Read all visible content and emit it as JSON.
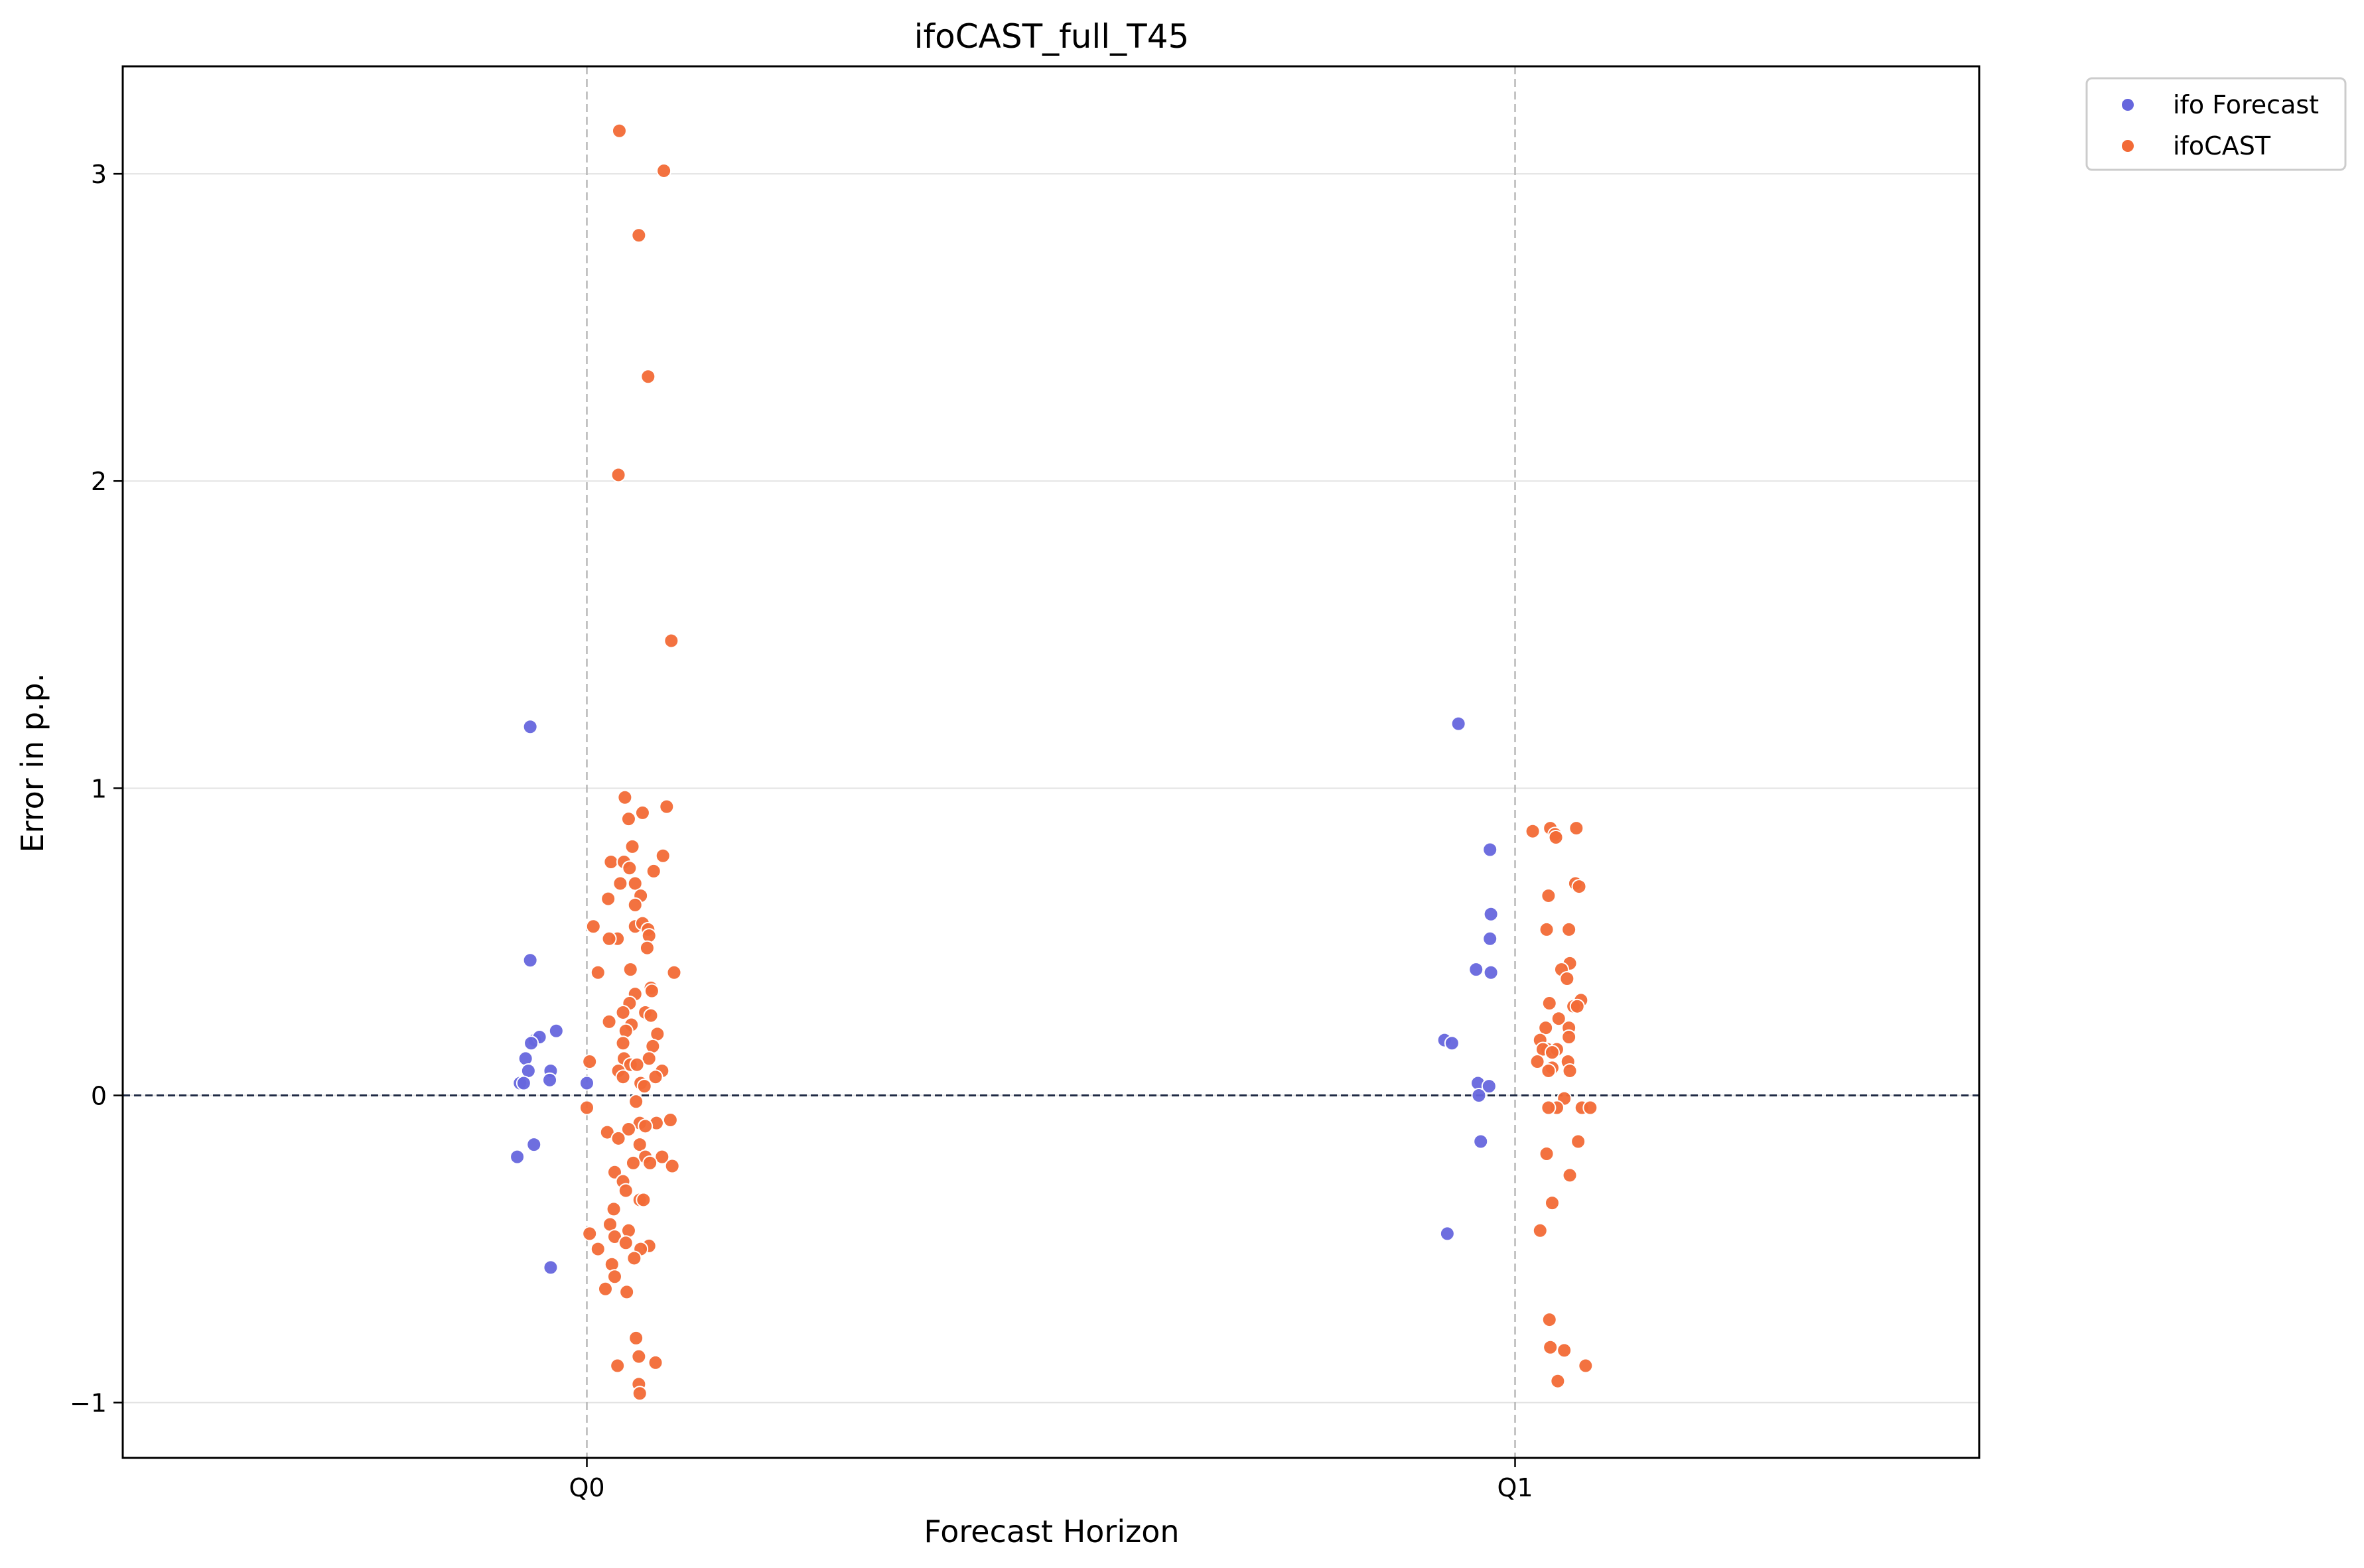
{
  "chart_data": {
    "type": "scatter",
    "title": "ifoCAST_full_T45",
    "xlabel": "Forecast Horizon",
    "ylabel": "Error in p.p.",
    "categories": [
      "Q0",
      "Q1"
    ],
    "xlim": [
      -0.5,
      1.5
    ],
    "ylim": [
      -1.18,
      3.35
    ],
    "yticks": [
      -1,
      0,
      1,
      2,
      3
    ],
    "ytick_labels": [
      "−1",
      "0",
      "1",
      "2",
      "3"
    ],
    "grid": "horizontal",
    "reference_line": {
      "y": 0,
      "style": "dashed",
      "color": "#1f2a44"
    },
    "category_guides": {
      "style": "dashed",
      "color": "#b8b8b8"
    },
    "legend": {
      "placement": "outside-top-right"
    },
    "series": [
      {
        "name": "ifo Forecast",
        "color": "#6666dd",
        "points": [
          [
            -0.061,
            1.2
          ],
          [
            -0.061,
            0.44
          ],
          [
            -0.056,
            0.18
          ],
          [
            -0.051,
            0.19
          ],
          [
            -0.033,
            0.21
          ],
          [
            -0.06,
            0.17
          ],
          [
            -0.066,
            0.12
          ],
          [
            -0.063,
            0.08
          ],
          [
            -0.039,
            0.08
          ],
          [
            -0.072,
            0.04
          ],
          [
            -0.068,
            0.04
          ],
          [
            -0.04,
            0.05
          ],
          [
            0.0,
            0.04
          ],
          [
            -0.075,
            -0.2
          ],
          [
            -0.057,
            -0.16
          ],
          [
            -0.039,
            -0.56
          ],
          [
            0.939,
            1.21
          ],
          [
            0.973,
            0.8
          ],
          [
            0.974,
            0.59
          ],
          [
            0.973,
            0.51
          ],
          [
            0.958,
            0.41
          ],
          [
            0.974,
            0.4
          ],
          [
            0.924,
            0.18
          ],
          [
            0.932,
            0.17
          ],
          [
            0.96,
            0.04
          ],
          [
            0.972,
            0.03
          ],
          [
            0.961,
            0.0
          ],
          [
            0.963,
            -0.15
          ],
          [
            0.927,
            -0.45
          ]
        ]
      },
      {
        "name": "ifoCAST",
        "color": "#f26a36",
        "points": [
          [
            0.035,
            3.14
          ],
          [
            0.083,
            3.01
          ],
          [
            0.056,
            2.8
          ],
          [
            0.066,
            2.34
          ],
          [
            0.034,
            2.02
          ],
          [
            0.091,
            1.48
          ],
          [
            0.041,
            0.97
          ],
          [
            0.086,
            0.94
          ],
          [
            0.06,
            0.92
          ],
          [
            0.045,
            0.9
          ],
          [
            0.049,
            0.81
          ],
          [
            0.082,
            0.78
          ],
          [
            0.026,
            0.76
          ],
          [
            0.04,
            0.76
          ],
          [
            0.046,
            0.74
          ],
          [
            0.072,
            0.73
          ],
          [
            0.052,
            0.69
          ],
          [
            0.036,
            0.69
          ],
          [
            0.058,
            0.65
          ],
          [
            0.023,
            0.64
          ],
          [
            0.052,
            0.62
          ],
          [
            0.007,
            0.55
          ],
          [
            0.052,
            0.55
          ],
          [
            0.06,
            0.56
          ],
          [
            0.066,
            0.54
          ],
          [
            0.067,
            0.52
          ],
          [
            0.033,
            0.51
          ],
          [
            0.024,
            0.51
          ],
          [
            0.065,
            0.48
          ],
          [
            0.012,
            0.4
          ],
          [
            0.047,
            0.41
          ],
          [
            0.094,
            0.4
          ],
          [
            0.069,
            0.35
          ],
          [
            0.07,
            0.34
          ],
          [
            0.052,
            0.33
          ],
          [
            0.046,
            0.3
          ],
          [
            0.063,
            0.27
          ],
          [
            0.039,
            0.27
          ],
          [
            0.069,
            0.26
          ],
          [
            0.024,
            0.24
          ],
          [
            0.048,
            0.23
          ],
          [
            0.042,
            0.21
          ],
          [
            0.076,
            0.2
          ],
          [
            0.039,
            0.17
          ],
          [
            0.071,
            0.16
          ],
          [
            0.067,
            0.12
          ],
          [
            0.04,
            0.12
          ],
          [
            0.047,
            0.1
          ],
          [
            0.003,
            0.11
          ],
          [
            0.054,
            0.1
          ],
          [
            0.034,
            0.08
          ],
          [
            0.081,
            0.08
          ],
          [
            0.039,
            0.06
          ],
          [
            0.074,
            0.06
          ],
          [
            0.058,
            0.04
          ],
          [
            0.062,
            0.03
          ],
          [
            0.053,
            -0.02
          ],
          [
            0.0,
            -0.04
          ],
          [
            0.09,
            -0.08
          ],
          [
            0.057,
            -0.09
          ],
          [
            0.075,
            -0.09
          ],
          [
            0.063,
            -0.1
          ],
          [
            0.045,
            -0.11
          ],
          [
            0.022,
            -0.12
          ],
          [
            0.034,
            -0.14
          ],
          [
            0.057,
            -0.16
          ],
          [
            0.063,
            -0.2
          ],
          [
            0.081,
            -0.2
          ],
          [
            0.068,
            -0.22
          ],
          [
            0.05,
            -0.22
          ],
          [
            0.092,
            -0.23
          ],
          [
            0.03,
            -0.25
          ],
          [
            0.039,
            -0.28
          ],
          [
            0.042,
            -0.31
          ],
          [
            0.057,
            -0.34
          ],
          [
            0.061,
            -0.34
          ],
          [
            0.029,
            -0.37
          ],
          [
            0.025,
            -0.42
          ],
          [
            0.003,
            -0.45
          ],
          [
            0.03,
            -0.46
          ],
          [
            0.045,
            -0.44
          ],
          [
            0.042,
            -0.48
          ],
          [
            0.067,
            -0.49
          ],
          [
            0.012,
            -0.5
          ],
          [
            0.058,
            -0.5
          ],
          [
            0.051,
            -0.53
          ],
          [
            0.027,
            -0.55
          ],
          [
            0.03,
            -0.59
          ],
          [
            0.02,
            -0.63
          ],
          [
            0.043,
            -0.64
          ],
          [
            0.053,
            -0.79
          ],
          [
            0.056,
            -0.85
          ],
          [
            0.074,
            -0.87
          ],
          [
            0.033,
            -0.88
          ],
          [
            0.056,
            -0.94
          ],
          [
            0.057,
            -0.97
          ],
          [
            1.038,
            0.87
          ],
          [
            1.066,
            0.87
          ],
          [
            1.019,
            0.86
          ],
          [
            1.043,
            0.85
          ],
          [
            1.044,
            0.84
          ],
          [
            1.065,
            0.69
          ],
          [
            1.069,
            0.68
          ],
          [
            1.036,
            0.65
          ],
          [
            1.058,
            0.54
          ],
          [
            1.034,
            0.54
          ],
          [
            1.059,
            0.43
          ],
          [
            1.05,
            0.41
          ],
          [
            1.056,
            0.38
          ],
          [
            1.071,
            0.31
          ],
          [
            1.037,
            0.3
          ],
          [
            1.063,
            0.29
          ],
          [
            1.067,
            0.29
          ],
          [
            1.047,
            0.25
          ],
          [
            1.058,
            0.22
          ],
          [
            1.033,
            0.22
          ],
          [
            1.058,
            0.19
          ],
          [
            1.027,
            0.18
          ],
          [
            1.035,
            0.15
          ],
          [
            1.045,
            0.15
          ],
          [
            1.03,
            0.15
          ],
          [
            1.04,
            0.14
          ],
          [
            1.024,
            0.11
          ],
          [
            1.057,
            0.11
          ],
          [
            1.059,
            0.08
          ],
          [
            1.04,
            0.09
          ],
          [
            1.036,
            0.08
          ],
          [
            1.053,
            -0.01
          ],
          [
            1.045,
            -0.04
          ],
          [
            1.036,
            -0.04
          ],
          [
            1.072,
            -0.04
          ],
          [
            1.081,
            -0.04
          ],
          [
            1.068,
            -0.15
          ],
          [
            1.034,
            -0.19
          ],
          [
            1.059,
            -0.26
          ],
          [
            1.04,
            -0.35
          ],
          [
            1.027,
            -0.44
          ],
          [
            1.037,
            -0.73
          ],
          [
            1.038,
            -0.82
          ],
          [
            1.053,
            -0.83
          ],
          [
            1.076,
            -0.88
          ],
          [
            1.046,
            -0.93
          ]
        ]
      }
    ]
  }
}
